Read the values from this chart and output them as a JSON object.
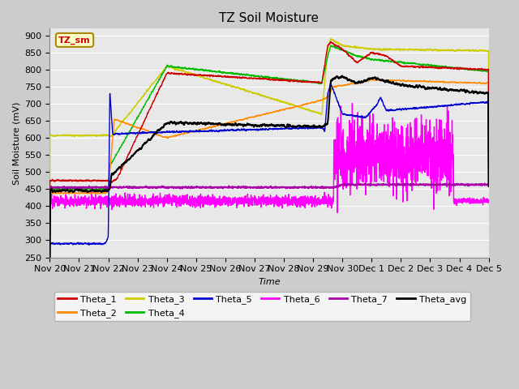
{
  "title": "TZ Soil Moisture",
  "xlabel": "Time",
  "ylabel": "Soil Moisture (mV)",
  "ylim": [
    250,
    920
  ],
  "yticks": [
    250,
    300,
    350,
    400,
    450,
    500,
    550,
    600,
    650,
    700,
    750,
    800,
    850,
    900
  ],
  "plot_bg_color": "#e8e8e8",
  "fig_bg_color": "#cccccc",
  "series_colors": {
    "Theta_1": "#cc0000",
    "Theta_2": "#ff8800",
    "Theta_3": "#cccc00",
    "Theta_4": "#00bb00",
    "Theta_5": "#0000cc",
    "Theta_6": "#ff00ff",
    "Theta_7": "#aa00aa",
    "Theta_avg": "#000000"
  },
  "legend_box_color": "#ffffcc",
  "legend_box_edge": "#aa8800",
  "title_fontsize": 11,
  "axis_fontsize": 8,
  "tick_fontsize": 8,
  "tick_labels": [
    "Nov 20",
    "Nov 21",
    "Nov 22",
    "Nov 23",
    "Nov 24",
    "Nov 25",
    "Nov 26",
    "Nov 27",
    "Nov 28",
    "Nov 29",
    "Nov 30",
    "Dec 1",
    "Dec 2",
    "Dec 3",
    "Dec 4",
    "Dec 5"
  ]
}
